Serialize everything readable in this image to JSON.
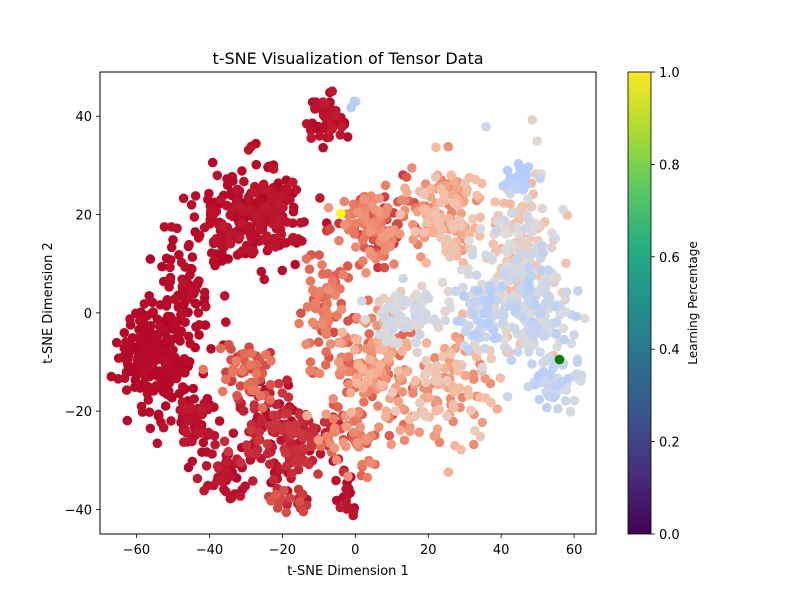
{
  "chart_data": {
    "type": "scatter",
    "title": "t-SNE Visualization of Tensor Data",
    "xlabel": "t-SNE Dimension 1",
    "ylabel": "t-SNE Dimension 2",
    "xlim": [
      -70,
      66
    ],
    "ylim": [
      -45,
      49
    ],
    "xticks": [
      -60,
      -40,
      -20,
      0,
      20,
      40,
      60
    ],
    "yticks": [
      -40,
      -20,
      0,
      20,
      40
    ],
    "xtick_labels": [
      "−60",
      "−40",
      "−20",
      "0",
      "20",
      "40",
      "60"
    ],
    "ytick_labels": [
      "−40",
      "−20",
      "0",
      "20",
      "40"
    ],
    "grid": false,
    "point_colormap": "coolwarm",
    "colorbar": {
      "label": "Learning Percentage",
      "colormap": "viridis",
      "range": [
        0.0,
        1.0
      ],
      "ticks": [
        0.0,
        0.2,
        0.4,
        0.6,
        0.8,
        1.0
      ],
      "tick_labels": [
        "0.0",
        "0.2",
        "0.4",
        "0.6",
        "0.8",
        "1.0"
      ]
    },
    "point_color_scale": [
      {
        "t": 0.0,
        "color": "#b40426"
      },
      {
        "t": 0.25,
        "color": "#e7745b"
      },
      {
        "t": 0.5,
        "color": "#f7b89c"
      },
      {
        "t": 0.75,
        "color": "#dddcdc"
      },
      {
        "t": 1.0,
        "color": "#b3cdfb"
      }
    ],
    "highlights": [
      {
        "x": -4,
        "y": 20.2,
        "color": "#ffff00"
      },
      {
        "x": 56,
        "y": -9.5,
        "color": "#008000"
      }
    ],
    "clusters": [
      {
        "cx": -55,
        "cy": -8,
        "rx": 8,
        "ry": 10,
        "n": 200,
        "tmin": 0.0,
        "tmax": 0.02
      },
      {
        "cx": -45,
        "cy": 5,
        "rx": 6,
        "ry": 12,
        "n": 80,
        "tmin": 0.0,
        "tmax": 0.03
      },
      {
        "cx": -35,
        "cy": 18,
        "rx": 7,
        "ry": 6,
        "n": 80,
        "tmin": 0.0,
        "tmax": 0.03
      },
      {
        "cx": -25,
        "cy": 20,
        "rx": 9,
        "ry": 8,
        "n": 170,
        "tmin": 0.0,
        "tmax": 0.05
      },
      {
        "cx": -20,
        "cy": -25,
        "rx": 12,
        "ry": 9,
        "n": 190,
        "tmin": 0.0,
        "tmax": 0.12
      },
      {
        "cx": -45,
        "cy": -22,
        "rx": 7,
        "ry": 6,
        "n": 60,
        "tmin": 0.0,
        "tmax": 0.05
      },
      {
        "cx": -35,
        "cy": -33,
        "rx": 5,
        "ry": 4,
        "n": 40,
        "tmin": 0.0,
        "tmax": 0.05
      },
      {
        "cx": -30,
        "cy": -12,
        "rx": 7,
        "ry": 5,
        "n": 55,
        "tmin": 0.1,
        "tmax": 0.3
      },
      {
        "cx": -7,
        "cy": 40,
        "rx": 5,
        "ry": 5,
        "n": 50,
        "tmin": 0.0,
        "tmax": 0.05
      },
      {
        "cx": -18,
        "cy": -38,
        "rx": 4,
        "ry": 2,
        "n": 20,
        "tmin": 0.05,
        "tmax": 0.2
      },
      {
        "cx": -2,
        "cy": -38,
        "rx": 3,
        "ry": 4,
        "n": 20,
        "tmin": 0.0,
        "tmax": 0.05
      },
      {
        "cx": -8,
        "cy": 0,
        "rx": 6,
        "ry": 10,
        "n": 70,
        "tmin": 0.15,
        "tmax": 0.35
      },
      {
        "cx": 5,
        "cy": 18,
        "rx": 8,
        "ry": 7,
        "n": 150,
        "tmin": 0.1,
        "tmax": 0.4
      },
      {
        "cx": 5,
        "cy": -10,
        "rx": 10,
        "ry": 10,
        "n": 140,
        "tmin": 0.2,
        "tmax": 0.5
      },
      {
        "cx": 0,
        "cy": -25,
        "rx": 8,
        "ry": 6,
        "n": 60,
        "tmin": 0.15,
        "tmax": 0.4
      },
      {
        "cx": 25,
        "cy": 20,
        "rx": 9,
        "ry": 8,
        "n": 130,
        "tmin": 0.3,
        "tmax": 0.6
      },
      {
        "cx": 25,
        "cy": -15,
        "rx": 10,
        "ry": 10,
        "n": 120,
        "tmin": 0.3,
        "tmax": 0.65
      },
      {
        "cx": 45,
        "cy": 10,
        "rx": 10,
        "ry": 15,
        "n": 200,
        "tmin": 0.5,
        "tmax": 0.85
      },
      {
        "cx": 50,
        "cy": 0,
        "rx": 8,
        "ry": 10,
        "n": 110,
        "tmin": 0.7,
        "tmax": 0.95
      },
      {
        "cx": 45,
        "cy": 28,
        "rx": 3,
        "ry": 3,
        "n": 25,
        "tmin": 0.9,
        "tmax": 1.0
      },
      {
        "cx": 55,
        "cy": -15,
        "rx": 5,
        "ry": 5,
        "n": 45,
        "tmin": 0.75,
        "tmax": 0.95
      },
      {
        "cx": 15,
        "cy": 0,
        "rx": 8,
        "ry": 5,
        "n": 90,
        "tmin": 0.6,
        "tmax": 0.85
      },
      {
        "cx": 35,
        "cy": 0,
        "rx": 8,
        "ry": 8,
        "n": 90,
        "tmin": 0.7,
        "tmax": 1.0
      },
      {
        "cx": 0,
        "cy": 42,
        "rx": 2,
        "ry": 1,
        "n": 3,
        "tmin": 0.95,
        "tmax": 1.0
      }
    ]
  }
}
